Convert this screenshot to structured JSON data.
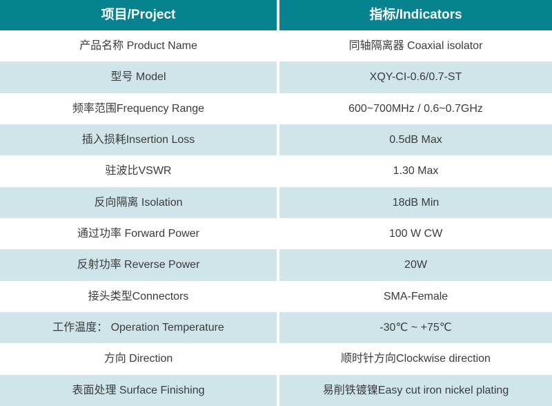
{
  "table": {
    "header": {
      "col1": "项目/Project",
      "col2": "指标/Indicators"
    },
    "rows": [
      {
        "project": "产品名称 Product Name",
        "indicator": "同轴隔离器 Coaxial isolator"
      },
      {
        "project": "型号 Model",
        "indicator": "XQY-CI-0.6/0.7-ST"
      },
      {
        "project": "频率范围Frequency Range",
        "indicator": "600~700MHz / 0.6~0.7GHz"
      },
      {
        "project": "插入损耗Insertion Loss",
        "indicator": "0.5dB Max"
      },
      {
        "project": "驻波比VSWR",
        "indicator": "1.30 Max"
      },
      {
        "project": "反向隔离 Isolation",
        "indicator": "18dB Min"
      },
      {
        "project": "通过功率 Forward Power",
        "indicator": "100 W CW"
      },
      {
        "project": "反射功率 Reverse Power",
        "indicator": "20W"
      },
      {
        "project": "接头类型Connectors",
        "indicator": "SMA-Female"
      },
      {
        "project": "工作温度： Operation Temperature",
        "indicator": "-30℃ ~ +75℃"
      },
      {
        "project": "方向 Direction",
        "indicator": "顺时针方向Clockwise direction"
      },
      {
        "project": "表面处理 Surface Finishing",
        "indicator": "易削铁镀镍Easy cut iron nickel plating"
      }
    ],
    "colors": {
      "header_bg": "#07828F",
      "header_text": "#FFFFFF",
      "row_bg": "#FFFFFF",
      "row_alt_bg": "#CFE5E9",
      "cell_text": "#3B3B3B",
      "divider": "#FFFFFF"
    }
  }
}
